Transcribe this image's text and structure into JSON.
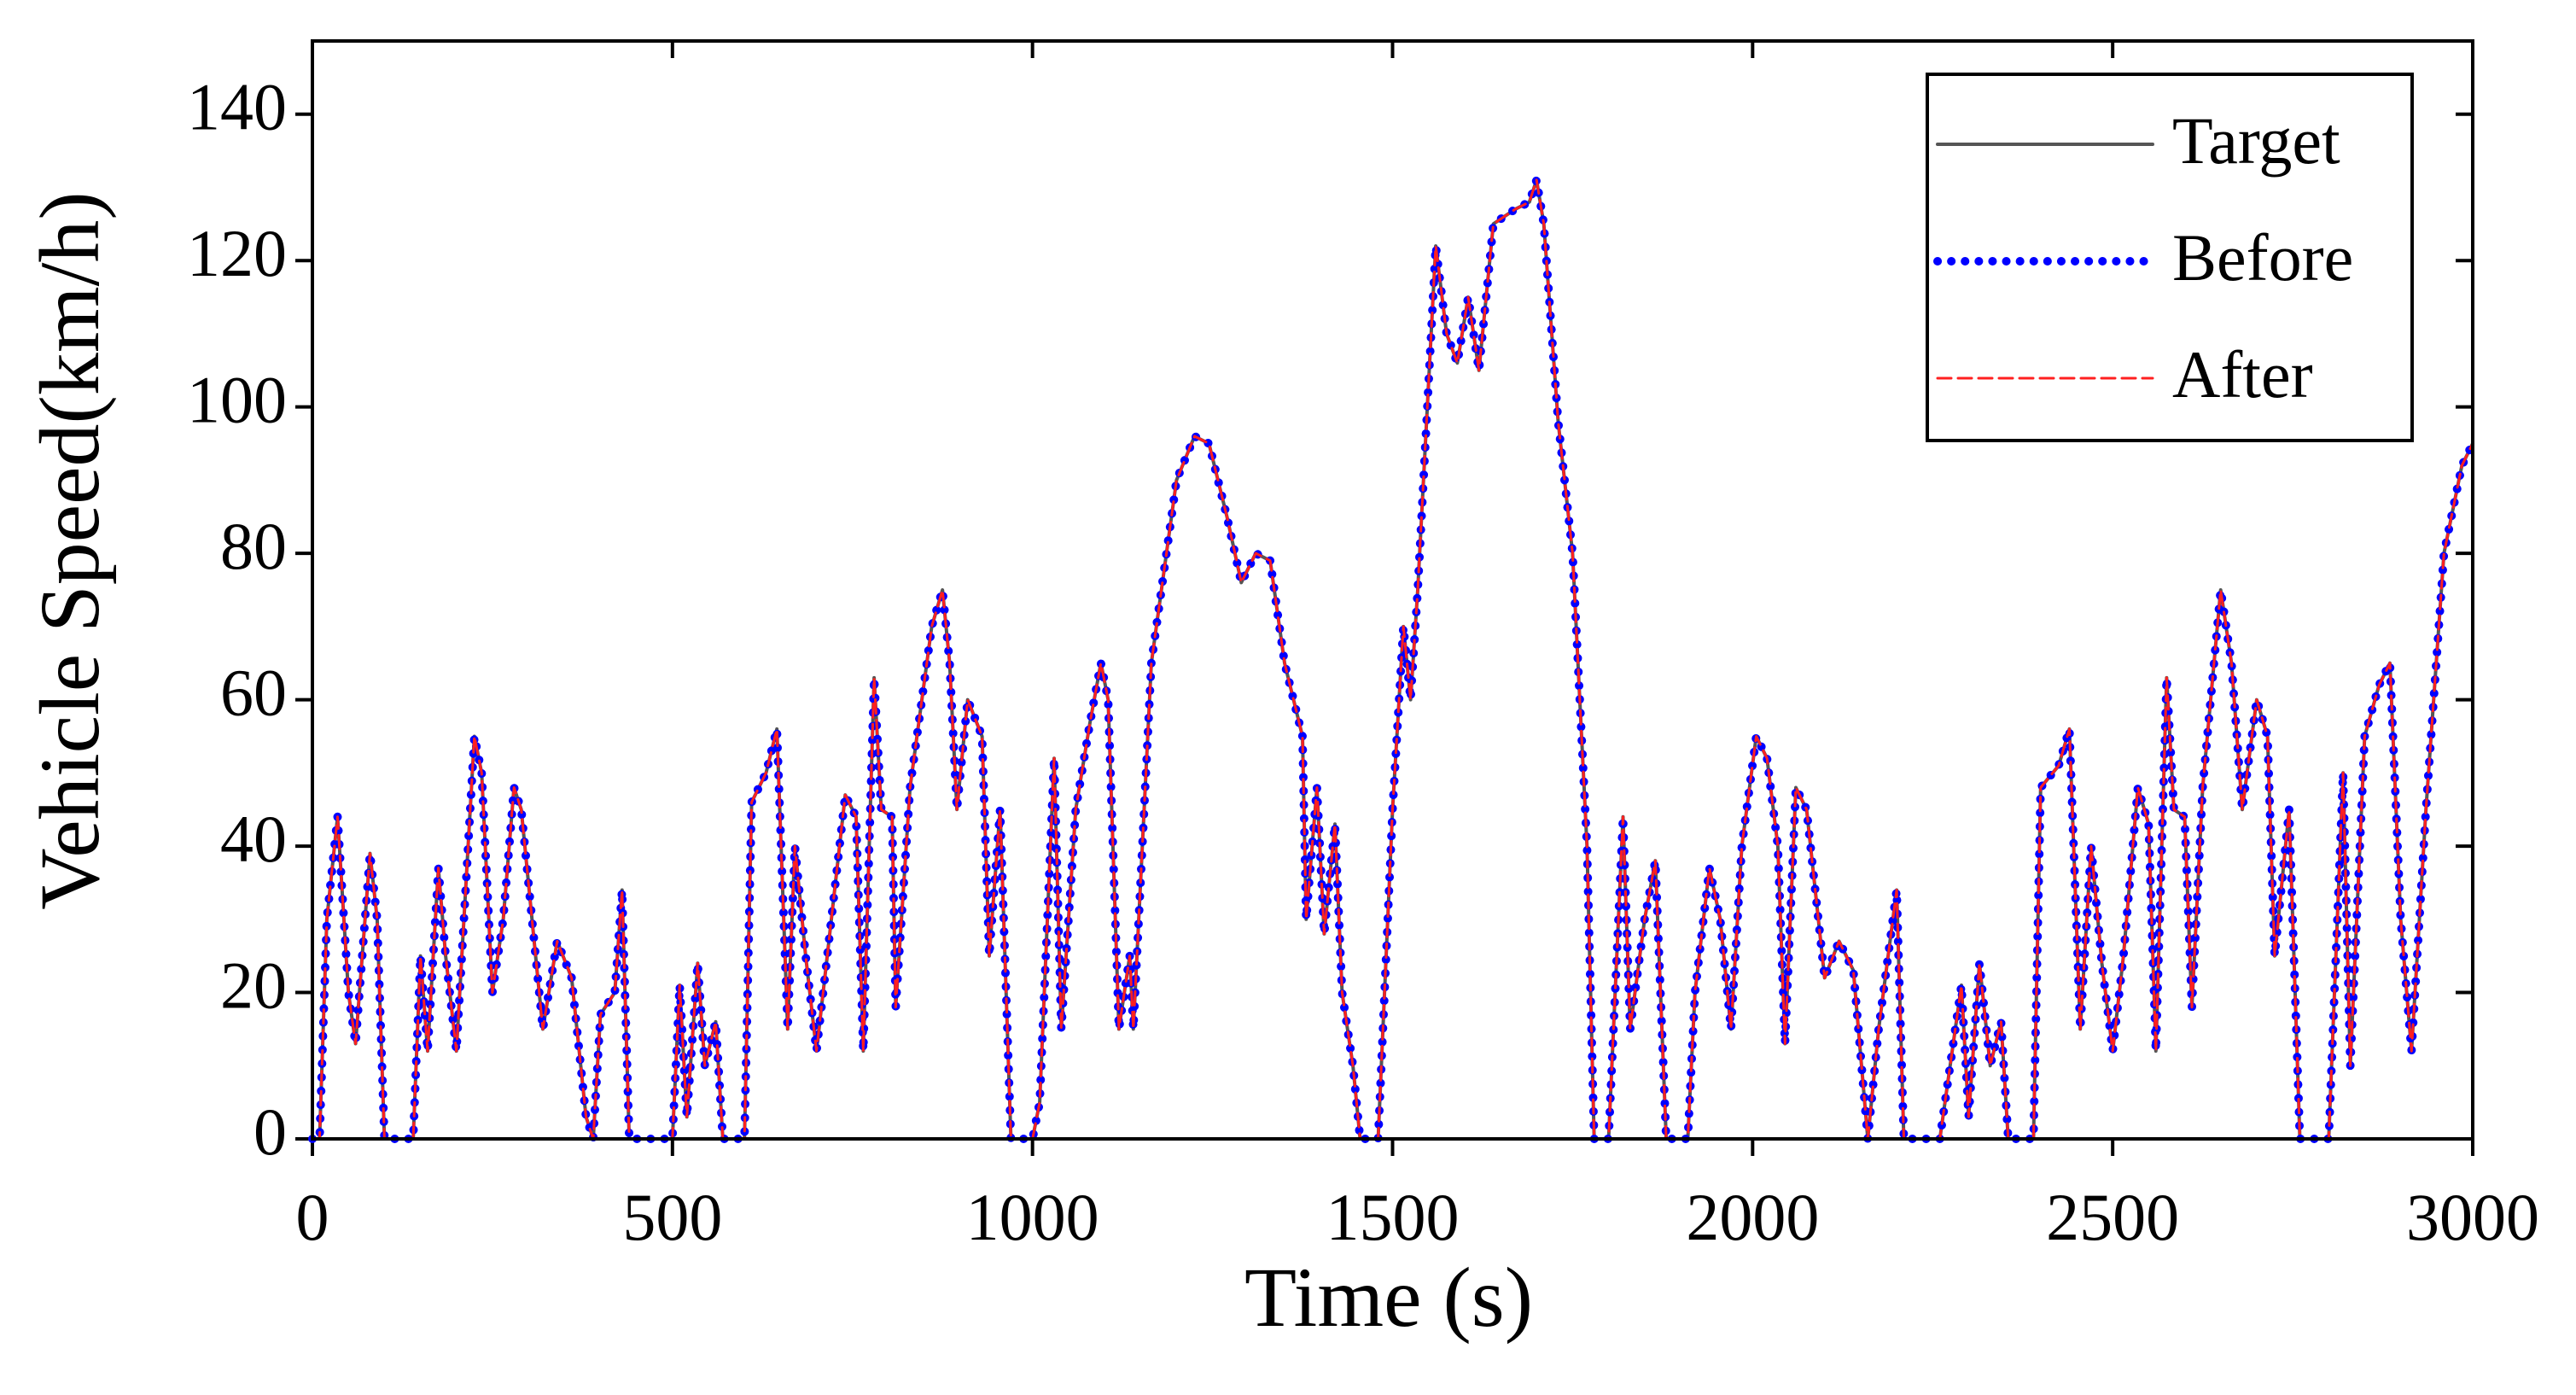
{
  "chart_data": {
    "type": "line",
    "xlabel": "Time (s)",
    "ylabel": "Vehicle Speed(km/h)",
    "xlim": [
      0,
      3000
    ],
    "ylim": [
      0,
      150
    ],
    "xticks": [
      0,
      500,
      1000,
      1500,
      2000,
      2500,
      3000
    ],
    "yticks": [
      0,
      20,
      40,
      60,
      80,
      100,
      120,
      140
    ],
    "legend": "upper right",
    "x": [
      0,
      10,
      20,
      35,
      50,
      60,
      80,
      90,
      100,
      140,
      150,
      160,
      175,
      185,
      200,
      225,
      235,
      250,
      265,
      280,
      290,
      310,
      320,
      340,
      360,
      380,
      390,
      400,
      420,
      430,
      440,
      480,
      500,
      510,
      520,
      535,
      545,
      560,
      570,
      600,
      610,
      630,
      645,
      660,
      670,
      685,
      700,
      715,
      740,
      755,
      765,
      780,
      790,
      805,
      810,
      830,
      860,
      875,
      885,
      895,
      910,
      930,
      940,
      955,
      970,
      1000,
      1010,
      1030,
      1040,
      1060,
      1080,
      1095,
      1105,
      1120,
      1135,
      1140,
      1165,
      1200,
      1225,
      1245,
      1270,
      1290,
      1310,
      1330,
      1350,
      1375,
      1380,
      1395,
      1405,
      1420,
      1430,
      1445,
      1455,
      1480,
      1500,
      1515,
      1525,
      1535,
      1560,
      1575,
      1590,
      1605,
      1620,
      1640,
      1670,
      1690,
      1700,
      1710,
      1730,
      1750,
      1770,
      1780,
      1800,
      1820,
      1830,
      1850,
      1865,
      1880,
      1910,
      1920,
      1940,
      1955,
      1970,
      1985,
      2005,
      2020,
      2035,
      2045,
      2060,
      2075,
      2100,
      2120,
      2140,
      2160,
      2175,
      2200,
      2210,
      2260,
      2290,
      2300,
      2315,
      2330,
      2345,
      2355,
      2390,
      2400,
      2425,
      2440,
      2455,
      2470,
      2485,
      2500,
      2515,
      2535,
      2550,
      2560,
      2575,
      2585,
      2600,
      2610,
      2625,
      2650,
      2665,
      2680,
      2700,
      2715,
      2725,
      2745,
      2760,
      2800,
      2820,
      2830,
      2850,
      2870,
      2885,
      2900,
      2915,
      2935,
      2960,
      2985,
      3000
    ],
    "series": [
      {
        "name": "Target",
        "color": "#555555",
        "style": "solid",
        "values": [
          0,
          0,
          30,
          44,
          20,
          13,
          39,
          30,
          0,
          0,
          25,
          12,
          37,
          25,
          12,
          55,
          50,
          20,
          30,
          48,
          45,
          25,
          15,
          27,
          22,
          3,
          0,
          17,
          20,
          34,
          0,
          0,
          0,
          21,
          3,
          24,
          10,
          16,
          0,
          0,
          46,
          50,
          56,
          15,
          40,
          25,
          12,
          25,
          47,
          44,
          12,
          63,
          45,
          44,
          18,
          48,
          70,
          75,
          65,
          45,
          60,
          55,
          25,
          45,
          0,
          0,
          5,
          52,
          15,
          45,
          57,
          65,
          60,
          15,
          25,
          15,
          65,
          90,
          96,
          95,
          85,
          76,
          80,
          79,
          65,
          55,
          30,
          48,
          28,
          43,
          20,
          10,
          0,
          0,
          45,
          70,
          60,
          75,
          122,
          110,
          106,
          115,
          105,
          125,
          127,
          128,
          131,
          125,
          98,
          80,
          40,
          0,
          0,
          44,
          15,
          30,
          38,
          0,
          0,
          20,
          37,
          30,
          15,
          40,
          55,
          52,
          40,
          13,
          48,
          45,
          22,
          27,
          23,
          0,
          15,
          34,
          0,
          0,
          21,
          3,
          24,
          10,
          16,
          0,
          0,
          48,
          51,
          56,
          15,
          40,
          24,
          12,
          25,
          48,
          43,
          12,
          63,
          45,
          44,
          18,
          48,
          75,
          65,
          45,
          60,
          55,
          25,
          45,
          0,
          0,
          50,
          10,
          55,
          62,
          65,
          30,
          12,
          45,
          80,
          92,
          95
        ]
      },
      {
        "name": "Before",
        "color": "#0000ff",
        "style": "dotted",
        "values": [
          0,
          0,
          30,
          44,
          20,
          13,
          39,
          30,
          0,
          0,
          25,
          12,
          37,
          25,
          12,
          55,
          50,
          20,
          30,
          48,
          45,
          25,
          15,
          27,
          22,
          3,
          0,
          17,
          20,
          34,
          0,
          0,
          0,
          21,
          3,
          24,
          10,
          16,
          0,
          0,
          46,
          50,
          56,
          15,
          40,
          25,
          12,
          25,
          47,
          44,
          12,
          63,
          45,
          44,
          18,
          48,
          70,
          75,
          65,
          45,
          60,
          55,
          25,
          45,
          0,
          0,
          5,
          52,
          15,
          45,
          57,
          65,
          60,
          15,
          25,
          15,
          65,
          90,
          96,
          95,
          85,
          76,
          80,
          79,
          65,
          55,
          30,
          48,
          28,
          43,
          20,
          10,
          0,
          0,
          45,
          70,
          60,
          75,
          122,
          110,
          106,
          115,
          105,
          125,
          127,
          128,
          131,
          125,
          98,
          80,
          40,
          0,
          0,
          44,
          15,
          30,
          38,
          0,
          0,
          20,
          37,
          30,
          15,
          40,
          55,
          52,
          40,
          13,
          48,
          45,
          22,
          27,
          23,
          0,
          15,
          34,
          0,
          0,
          21,
          3,
          24,
          10,
          16,
          0,
          0,
          48,
          51,
          56,
          15,
          40,
          24,
          12,
          25,
          48,
          43,
          12,
          63,
          45,
          44,
          18,
          48,
          75,
          65,
          45,
          60,
          55,
          25,
          45,
          0,
          0,
          50,
          10,
          55,
          62,
          65,
          30,
          12,
          45,
          80,
          92,
          95
        ]
      },
      {
        "name": "After",
        "color": "#ff2020",
        "style": "dashed",
        "values": [
          0,
          0,
          30,
          44,
          20,
          13,
          39,
          30,
          0,
          0,
          25,
          12,
          37,
          25,
          12,
          55,
          50,
          20,
          30,
          48,
          45,
          25,
          15,
          27,
          22,
          3,
          0,
          17,
          20,
          34,
          0,
          0,
          0,
          21,
          3,
          24,
          10,
          16,
          0,
          0,
          46,
          50,
          56,
          15,
          40,
          25,
          12,
          25,
          47,
          44,
          12,
          63,
          45,
          44,
          18,
          48,
          70,
          75,
          65,
          45,
          60,
          55,
          25,
          45,
          0,
          0,
          5,
          52,
          15,
          45,
          57,
          65,
          60,
          15,
          25,
          15,
          65,
          90,
          96,
          95,
          85,
          76,
          80,
          79,
          65,
          55,
          30,
          48,
          28,
          43,
          20,
          10,
          0,
          0,
          45,
          70,
          60,
          75,
          122,
          110,
          106,
          115,
          105,
          125,
          127,
          128,
          131,
          125,
          98,
          80,
          40,
          0,
          0,
          44,
          15,
          30,
          38,
          0,
          0,
          20,
          37,
          30,
          15,
          40,
          55,
          52,
          40,
          13,
          48,
          45,
          22,
          27,
          23,
          0,
          15,
          34,
          0,
          0,
          21,
          3,
          24,
          10,
          16,
          0,
          0,
          48,
          51,
          56,
          15,
          40,
          24,
          12,
          25,
          48,
          43,
          12,
          63,
          45,
          44,
          18,
          48,
          75,
          65,
          45,
          60,
          55,
          25,
          45,
          0,
          0,
          50,
          10,
          55,
          62,
          65,
          30,
          12,
          45,
          80,
          92,
          95
        ]
      }
    ]
  }
}
